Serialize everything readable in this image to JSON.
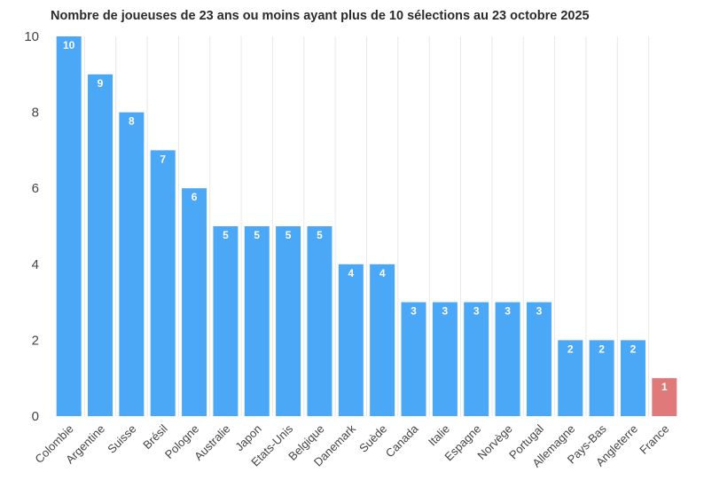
{
  "chart_data": {
    "type": "bar",
    "title": "Nombre de joueuses de 23 ans ou moins ayant plus de 10 sélections au 23 octobre 2025",
    "xlabel": "",
    "ylabel": "",
    "ylim": [
      0,
      10
    ],
    "yticks": [
      0,
      2,
      4,
      6,
      8,
      10
    ],
    "grid": "vertical",
    "categories": [
      "Colombie",
      "Argentine",
      "Suisse",
      "Brésil",
      "Pologne",
      "Australie",
      "Japon",
      "Etats-Unis",
      "Belgique",
      "Danemark",
      "Suède",
      "Canada",
      "Italie",
      "Espagne",
      "Norvège",
      "Portugal",
      "Allemagne",
      "Pays-Bas",
      "Angleterre",
      "France"
    ],
    "values": [
      10,
      9,
      8,
      7,
      6,
      5,
      5,
      5,
      5,
      4,
      4,
      3,
      3,
      3,
      3,
      3,
      2,
      2,
      2,
      1
    ],
    "colors": {
      "default": "#4aa8f7",
      "highlight": "#e07a7a"
    },
    "highlight_category": "France"
  }
}
